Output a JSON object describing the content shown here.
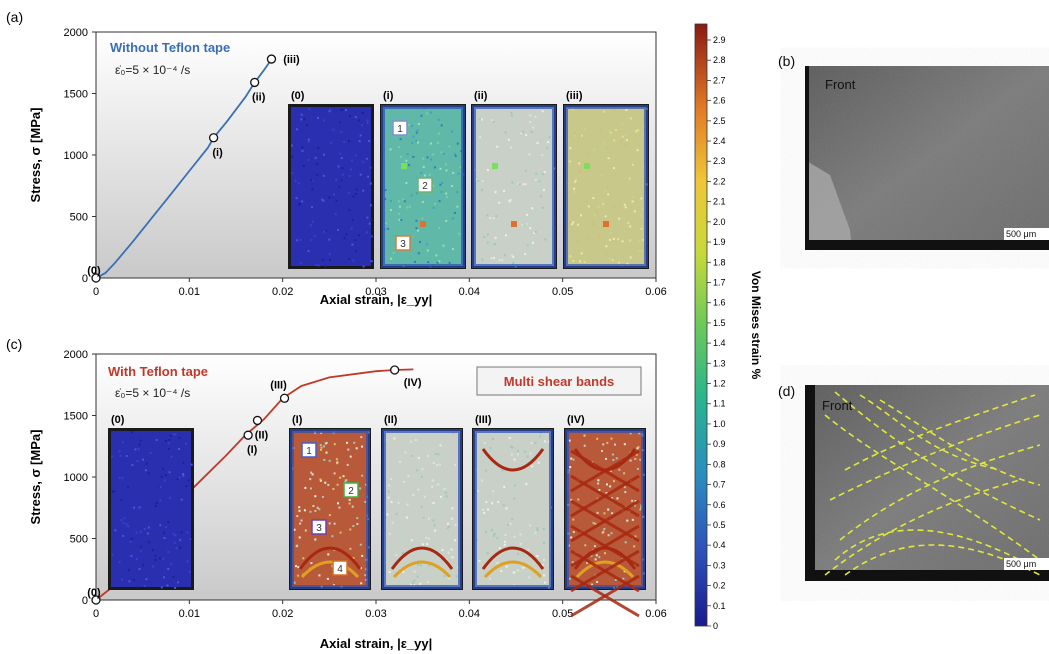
{
  "panel_labels": {
    "a": "(a)",
    "b": "(b)",
    "c": "(c)",
    "d": "(d)"
  },
  "colorbar": {
    "title": "Von Mises strain %",
    "ticks": [
      "0",
      "0.1",
      "0.2",
      "0.3",
      "0.4",
      "0.5",
      "0.6",
      "0.7",
      "0.8",
      "0.9",
      "1.0",
      "1.1",
      "1.2",
      "1.3",
      "1.4",
      "1.5",
      "1.6",
      "1.7",
      "1.8",
      "1.9",
      "2.0",
      "2.1",
      "2.2",
      "2.3",
      "2.4",
      "2.5",
      "2.6",
      "2.7",
      "2.8",
      "2.9"
    ]
  },
  "sem": {
    "b": {
      "label": "Front",
      "scale": "500 μm"
    },
    "d": {
      "label": "Front",
      "scale": "500 μm"
    }
  },
  "colors": {
    "series_a": "#3a6fb5",
    "series_c": "#c0392b",
    "band_line": "#e0e83a"
  },
  "chart_data": [
    {
      "type": "line",
      "panel": "(a)",
      "xlabel": "Axial strain, |ε_yy|",
      "ylabel": "Stress, σ [MPa]",
      "xlim": [
        0,
        0.06
      ],
      "ylim": [
        0,
        2000
      ],
      "xticks": [
        "0",
        "0.01",
        "0.02",
        "0.03",
        "0.04",
        "0.05",
        "0.06"
      ],
      "yticks": [
        "0",
        "500",
        "1000",
        "1500",
        "2000"
      ],
      "legend": "Without Teflon tape",
      "rate_label": "ε̇₀=5 × 10⁻⁴ /s",
      "series": [
        {
          "name": "Without Teflon tape",
          "x": [
            0,
            0.001,
            0.002,
            0.004,
            0.006,
            0.008,
            0.01,
            0.012,
            0.0126,
            0.014,
            0.016,
            0.017,
            0.018,
            0.0188
          ],
          "y": [
            0,
            40,
            120,
            300,
            490,
            680,
            870,
            1060,
            1140,
            1270,
            1470,
            1590,
            1690,
            1780
          ]
        }
      ],
      "markers": [
        {
          "x": 0,
          "y": 0,
          "label": "(0)"
        },
        {
          "x": 0.0126,
          "y": 1140,
          "label": "(i)"
        },
        {
          "x": 0.017,
          "y": 1590,
          "label": "(ii)"
        },
        {
          "x": 0.0188,
          "y": 1780,
          "label": "(iii)"
        }
      ],
      "insets": [
        "(0)",
        "(i)",
        "(ii)",
        "(iii)"
      ],
      "inset_markers": [
        "1",
        "2",
        "3"
      ]
    },
    {
      "type": "line",
      "panel": "(c)",
      "xlabel": "Axial strain, |ε_yy|",
      "ylabel": "Stress, σ [MPa]",
      "xlim": [
        0,
        0.06
      ],
      "ylim": [
        0,
        2000
      ],
      "xticks": [
        "0",
        "0.01",
        "0.02",
        "0.03",
        "0.04",
        "0.05",
        "0.06"
      ],
      "yticks": [
        "0",
        "500",
        "1000",
        "1500",
        "2000"
      ],
      "legend": "With Teflon tape",
      "annotation": "Multi shear bands",
      "rate_label": "ε̇₀=5 × 10⁻⁴ /s",
      "series": [
        {
          "name": "With Teflon tape",
          "x": [
            0,
            0.002,
            0.004,
            0.006,
            0.008,
            0.01,
            0.012,
            0.014,
            0.016,
            0.018,
            0.02,
            0.022,
            0.025,
            0.028,
            0.03,
            0.032,
            0.034
          ],
          "y": [
            0,
            120,
            320,
            530,
            720,
            880,
            1030,
            1180,
            1340,
            1470,
            1640,
            1740,
            1810,
            1840,
            1860,
            1870,
            1875
          ]
        }
      ],
      "markers": [
        {
          "x": 0,
          "y": 0,
          "label": "(0)"
        },
        {
          "x": 0.0163,
          "y": 1340,
          "label": "(I)"
        },
        {
          "x": 0.0173,
          "y": 1460,
          "label": "(II)"
        },
        {
          "x": 0.0202,
          "y": 1640,
          "label": "(III)"
        },
        {
          "x": 0.032,
          "y": 1870,
          "label": "(IV)"
        }
      ],
      "insets": [
        "(0)",
        "(I)",
        "(II)",
        "(III)",
        "(IV)"
      ],
      "inset_markers": [
        "1",
        "2",
        "3",
        "4"
      ]
    }
  ]
}
